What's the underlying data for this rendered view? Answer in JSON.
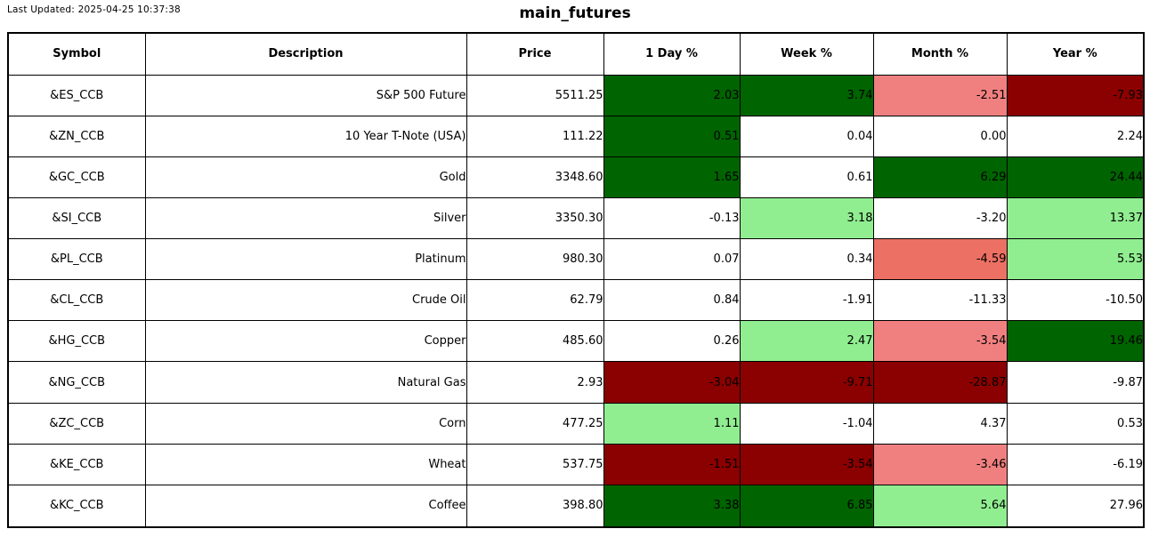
{
  "header": {
    "last_updated": "Last Updated: 2025-04-25 10:37:38",
    "title": "main_futures"
  },
  "colors": {
    "dark_green": "#006400",
    "light_green": "#90ee90",
    "light_red": "#f08080",
    "mid_red": "#ec7063",
    "dark_red": "#8b0000",
    "neutral": "#ffffff",
    "border": "#000000"
  },
  "table": {
    "columns": [
      "Symbol",
      "Description",
      "Price",
      "1 Day %",
      "Week %",
      "Month %",
      "Year %"
    ],
    "rows": [
      {
        "symbol": "&ES_CCB",
        "description": "S&P 500 Future",
        "price": "5511.25",
        "pcts": [
          {
            "value": "2.03",
            "bg": "#006400"
          },
          {
            "value": "3.74",
            "bg": "#006400"
          },
          {
            "value": "-2.51",
            "bg": "#f08080"
          },
          {
            "value": "-7.93",
            "bg": "#8b0000"
          }
        ]
      },
      {
        "symbol": "&ZN_CCB",
        "description": "10 Year T-Note (USA)",
        "price": "111.22",
        "pcts": [
          {
            "value": "0.51",
            "bg": "#006400"
          },
          {
            "value": "0.04",
            "bg": "#ffffff"
          },
          {
            "value": "0.00",
            "bg": "#ffffff"
          },
          {
            "value": "2.24",
            "bg": "#ffffff"
          }
        ]
      },
      {
        "symbol": "&GC_CCB",
        "description": "Gold",
        "price": "3348.60",
        "pcts": [
          {
            "value": "1.65",
            "bg": "#006400"
          },
          {
            "value": "0.61",
            "bg": "#ffffff"
          },
          {
            "value": "6.29",
            "bg": "#006400"
          },
          {
            "value": "24.44",
            "bg": "#006400"
          }
        ]
      },
      {
        "symbol": "&SI_CCB",
        "description": "Silver",
        "price": "3350.30",
        "pcts": [
          {
            "value": "-0.13",
            "bg": "#ffffff"
          },
          {
            "value": "3.18",
            "bg": "#90ee90"
          },
          {
            "value": "-3.20",
            "bg": "#ffffff"
          },
          {
            "value": "13.37",
            "bg": "#90ee90"
          }
        ]
      },
      {
        "symbol": "&PL_CCB",
        "description": "Platinum",
        "price": "980.30",
        "pcts": [
          {
            "value": "0.07",
            "bg": "#ffffff"
          },
          {
            "value": "0.34",
            "bg": "#ffffff"
          },
          {
            "value": "-4.59",
            "bg": "#ec7063"
          },
          {
            "value": "5.53",
            "bg": "#90ee90"
          }
        ]
      },
      {
        "symbol": "&CL_CCB",
        "description": "Crude Oil",
        "price": "62.79",
        "pcts": [
          {
            "value": "0.84",
            "bg": "#ffffff"
          },
          {
            "value": "-1.91",
            "bg": "#ffffff"
          },
          {
            "value": "-11.33",
            "bg": "#ffffff"
          },
          {
            "value": "-10.50",
            "bg": "#ffffff"
          }
        ]
      },
      {
        "symbol": "&HG_CCB",
        "description": "Copper",
        "price": "485.60",
        "pcts": [
          {
            "value": "0.26",
            "bg": "#ffffff"
          },
          {
            "value": "2.47",
            "bg": "#90ee90"
          },
          {
            "value": "-3.54",
            "bg": "#f08080"
          },
          {
            "value": "19.46",
            "bg": "#006400"
          }
        ]
      },
      {
        "symbol": "&NG_CCB",
        "description": "Natural Gas",
        "price": "2.93",
        "pcts": [
          {
            "value": "-3.04",
            "bg": "#8b0000"
          },
          {
            "value": "-9.71",
            "bg": "#8b0000"
          },
          {
            "value": "-28.87",
            "bg": "#8b0000"
          },
          {
            "value": "-9.87",
            "bg": "#ffffff"
          }
        ]
      },
      {
        "symbol": "&ZC_CCB",
        "description": "Corn",
        "price": "477.25",
        "pcts": [
          {
            "value": "1.11",
            "bg": "#90ee90"
          },
          {
            "value": "-1.04",
            "bg": "#ffffff"
          },
          {
            "value": "4.37",
            "bg": "#ffffff"
          },
          {
            "value": "0.53",
            "bg": "#ffffff"
          }
        ]
      },
      {
        "symbol": "&KE_CCB",
        "description": "Wheat",
        "price": "537.75",
        "pcts": [
          {
            "value": "-1.51",
            "bg": "#8b0000"
          },
          {
            "value": "-3.54",
            "bg": "#8b0000"
          },
          {
            "value": "-3.46",
            "bg": "#f08080"
          },
          {
            "value": "-6.19",
            "bg": "#ffffff"
          }
        ]
      },
      {
        "symbol": "&KC_CCB",
        "description": "Coffee",
        "price": "398.80",
        "pcts": [
          {
            "value": "3.38",
            "bg": "#006400"
          },
          {
            "value": "6.85",
            "bg": "#006400"
          },
          {
            "value": "5.64",
            "bg": "#90ee90"
          },
          {
            "value": "27.96",
            "bg": "#ffffff"
          }
        ]
      }
    ]
  },
  "chart_data": {
    "type": "table",
    "title": "main_futures",
    "subtitle": "Last Updated: 2025-04-25 10:37:38",
    "columns": [
      "Symbol",
      "Description",
      "Price",
      "1 Day %",
      "Week %",
      "Month %",
      "Year %"
    ],
    "rows": [
      [
        "&ES_CCB",
        "S&P 500 Future",
        5511.25,
        2.03,
        3.74,
        -2.51,
        -7.93
      ],
      [
        "&ZN_CCB",
        "10 Year T-Note (USA)",
        111.22,
        0.51,
        0.04,
        0.0,
        2.24
      ],
      [
        "&GC_CCB",
        "Gold",
        3348.6,
        1.65,
        0.61,
        6.29,
        24.44
      ],
      [
        "&SI_CCB",
        "Silver",
        3350.3,
        -0.13,
        3.18,
        -3.2,
        13.37
      ],
      [
        "&PL_CCB",
        "Platinum",
        980.3,
        0.07,
        0.34,
        -4.59,
        5.53
      ],
      [
        "&CL_CCB",
        "Crude Oil",
        62.79,
        0.84,
        -1.91,
        -11.33,
        -10.5
      ],
      [
        "&HG_CCB",
        "Copper",
        485.6,
        0.26,
        2.47,
        -3.54,
        19.46
      ],
      [
        "&NG_CCB",
        "Natural Gas",
        2.93,
        -3.04,
        -9.71,
        -28.87,
        -9.87
      ],
      [
        "&ZC_CCB",
        "Corn",
        477.25,
        1.11,
        -1.04,
        4.37,
        0.53
      ],
      [
        "&KE_CCB",
        "Wheat",
        537.75,
        -1.51,
        -3.54,
        -3.46,
        -6.19
      ],
      [
        "&KC_CCB",
        "Coffee",
        398.8,
        3.38,
        6.85,
        5.64,
        27.96
      ]
    ],
    "cell_highlight_colors": {
      "strong_gain": "#006400",
      "moderate_gain": "#90ee90",
      "moderate_loss": "#f08080",
      "deeper_loss": "#ec7063",
      "strong_loss": "#8b0000",
      "neutral": "#ffffff"
    },
    "layout_hints": {
      "grid": true,
      "header_row_bold": true,
      "symbol_align": "center",
      "value_align": "right"
    }
  }
}
